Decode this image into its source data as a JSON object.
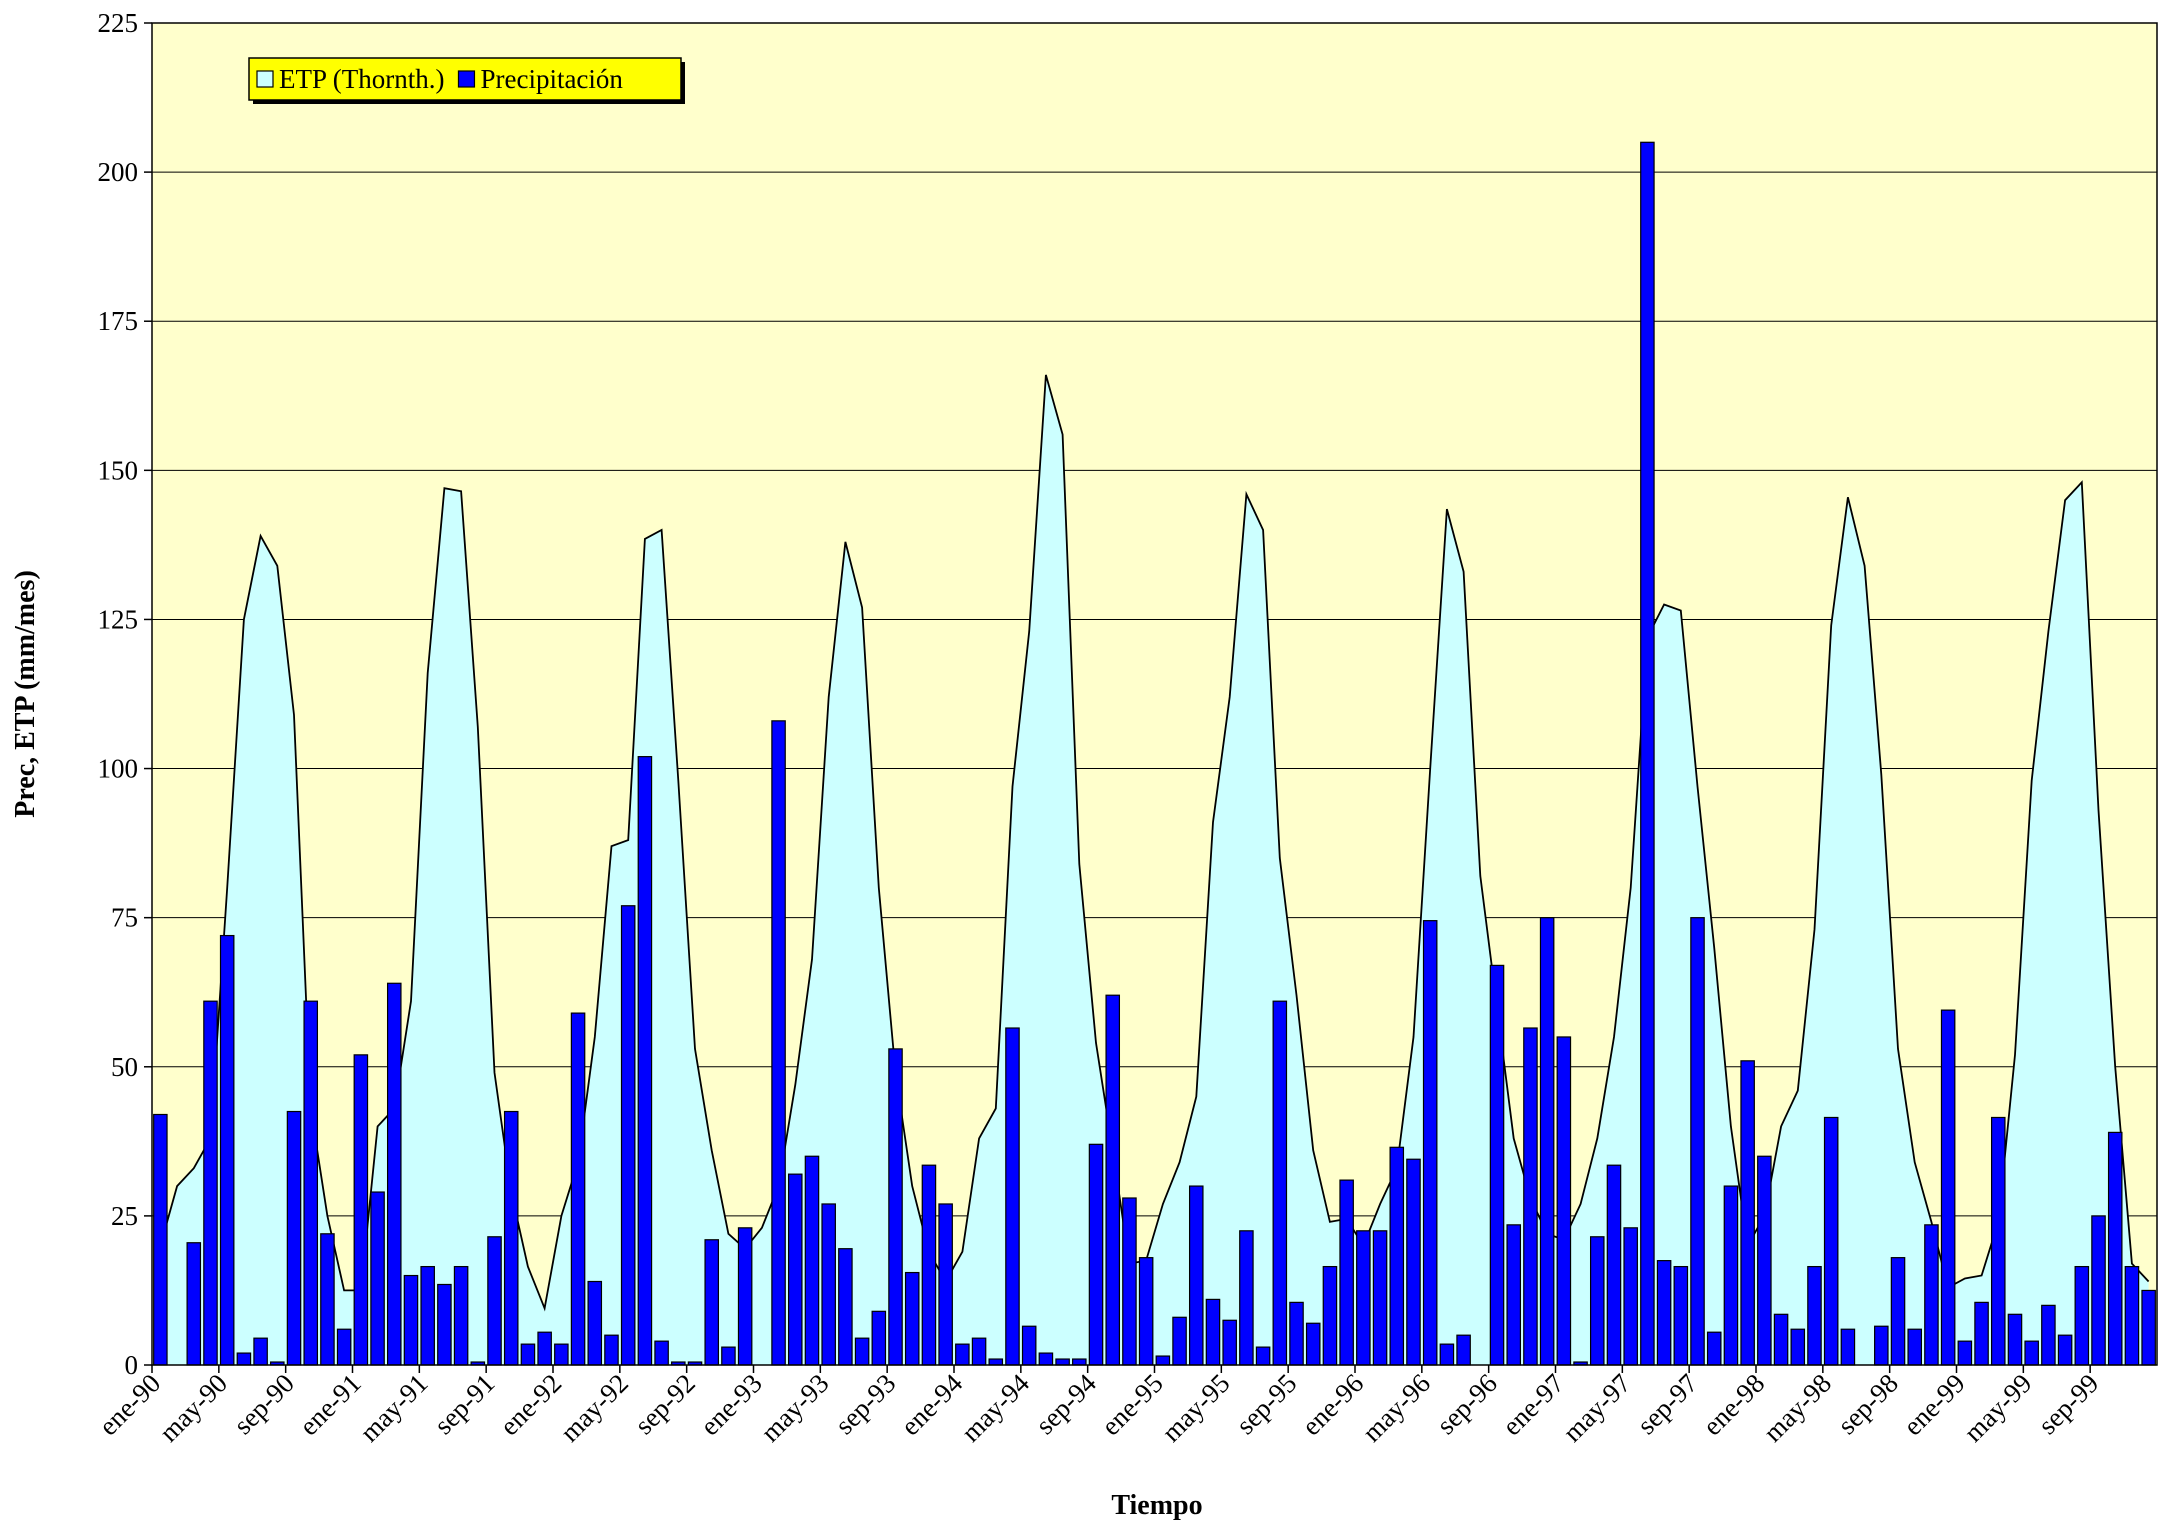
{
  "chart_data": {
    "type": "bar",
    "x_label": "Tiempo",
    "y_label": "Prec, ETP (mm/mes)",
    "categories": [
      "ene-90",
      null,
      null,
      null,
      "may-90",
      null,
      null,
      null,
      "sep-90",
      null,
      null,
      null,
      "ene-91",
      null,
      null,
      null,
      "may-91",
      null,
      null,
      null,
      "sep-91",
      null,
      null,
      null,
      "ene-92",
      null,
      null,
      null,
      "may-92",
      null,
      null,
      null,
      "sep-92",
      null,
      null,
      null,
      "ene-93",
      null,
      null,
      null,
      "may-93",
      null,
      null,
      null,
      "sep-93",
      null,
      null,
      null,
      "ene-94",
      null,
      null,
      null,
      "may-94",
      null,
      null,
      null,
      "sep-94",
      null,
      null,
      null,
      "ene-95",
      null,
      null,
      null,
      "may-95",
      null,
      null,
      null,
      "sep-95",
      null,
      null,
      null,
      "ene-96",
      null,
      null,
      null,
      "may-96",
      null,
      null,
      null,
      "sep-96",
      null,
      null,
      null,
      "ene-97",
      null,
      null,
      null,
      "may-97",
      null,
      null,
      null,
      "sep-97",
      null,
      null,
      null,
      "ene-98",
      null,
      null,
      null,
      "may-98",
      null,
      null,
      null,
      "sep-98",
      null,
      null,
      null,
      "ene-99",
      null,
      null,
      null,
      "may-99",
      null,
      null,
      null,
      "sep-99",
      null,
      null,
      null
    ],
    "series": [
      {
        "name": "ETP (Thornth.)",
        "type": "area",
        "color": "#ccffff",
        "values": [
          20,
          30,
          33,
          38,
          80,
          125,
          139,
          134,
          109,
          43,
          25,
          12.5,
          12.5,
          40,
          43,
          61,
          116,
          147,
          146.5,
          107,
          49,
          29,
          16.5,
          9.5,
          25,
          34,
          55,
          87,
          88,
          138.5,
          140,
          98,
          53,
          36,
          22,
          19.5,
          23,
          30,
          47,
          68,
          112,
          138,
          127,
          80,
          49,
          30,
          19,
          14,
          19,
          38,
          43,
          97,
          123,
          166,
          156,
          84,
          54,
          36,
          17,
          17.5,
          27,
          34,
          45,
          91,
          112,
          146,
          140,
          85,
          62,
          36,
          24,
          24.5,
          20,
          27,
          33,
          55,
          100,
          143.5,
          133,
          82,
          60,
          38,
          28,
          22,
          21,
          27,
          38,
          55,
          80,
          122,
          127.5,
          126.5,
          97,
          70,
          40,
          20,
          25,
          40,
          46,
          73,
          124,
          145.5,
          134,
          99,
          53,
          34,
          24,
          13,
          14.5,
          15,
          24,
          52,
          98,
          123,
          145,
          148,
          93,
          50,
          17,
          14
        ]
      },
      {
        "name": "Precipitación",
        "type": "bar",
        "color": "#0000ff",
        "values": [
          42,
          0,
          20.5,
          61,
          72,
          2,
          4.5,
          0.5,
          42.5,
          61,
          22,
          6,
          52,
          29,
          64,
          15,
          16.5,
          13.5,
          16.5,
          0.5,
          21.5,
          42.5,
          3.5,
          5.5,
          3.5,
          59,
          14,
          5,
          77,
          102,
          4,
          0.5,
          0.5,
          21,
          3,
          23,
          0,
          108,
          32,
          35,
          27,
          19.5,
          4.5,
          9,
          53,
          15.5,
          33.5,
          27,
          3.5,
          4.5,
          1,
          56.5,
          6.5,
          2,
          1,
          1,
          37,
          62,
          28,
          18,
          1.5,
          8,
          30,
          11,
          7.5,
          22.5,
          3,
          61,
          10.5,
          7,
          16.5,
          31,
          22.5,
          22.5,
          36.5,
          34.5,
          74.5,
          3.5,
          5,
          0,
          67,
          23.5,
          56.5,
          75,
          55,
          0.5,
          21.5,
          33.5,
          23,
          205,
          17.5,
          16.5,
          75,
          5.5,
          30,
          51,
          35,
          8.5,
          6,
          16.5,
          41.5,
          6,
          0,
          6.5,
          18,
          6,
          23.5,
          59.5,
          4,
          10.5,
          41.5,
          8.5,
          4,
          10,
          5,
          16.5,
          25,
          39,
          16.5,
          12.5
        ]
      }
    ],
    "ylim": [
      0,
      225
    ],
    "yticks": [
      0,
      25,
      50,
      75,
      100,
      125,
      150,
      175,
      200,
      225
    ],
    "grid": true,
    "legend": "top-left",
    "plot_background": "#ffffcc",
    "legend_background": "#ffff00"
  }
}
